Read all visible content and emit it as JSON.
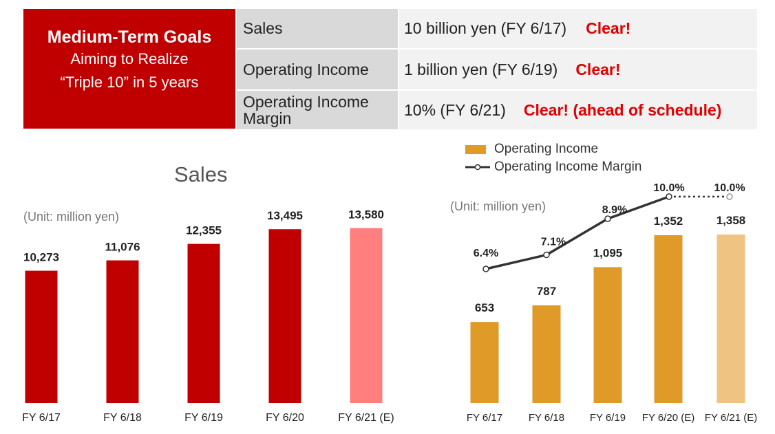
{
  "goals": {
    "title": "Medium-Term Goals",
    "subtitle_line1": "Aiming to Realize",
    "subtitle_line2": "“Triple 10” in 5 years",
    "rows": [
      {
        "label": "Sales",
        "value": "10 billion yen (FY 6/17)",
        "status": "Clear!"
      },
      {
        "label": "Operating Income",
        "value": "1 billion yen (FY 6/19)",
        "status": "Clear!"
      },
      {
        "label_line1": "Operating Income",
        "label_line2": "Margin",
        "value": "10% (FY 6/21)",
        "status": "Clear! (ahead of schedule)"
      }
    ]
  },
  "colors": {
    "brand_red": "#c00000",
    "sales_bar": "#c00000",
    "sales_estimate_bar": "#ff7f7f",
    "income_bar": "#e09a28",
    "income_estimate_bar": "#efc382",
    "margin_line": "#333333"
  },
  "chart_data": [
    {
      "type": "bar",
      "title": "Sales",
      "unit_note": "(Unit: million yen)",
      "categories": [
        "FY 6/17",
        "FY 6/18",
        "FY 6/19",
        "FY 6/20",
        "FY 6/21 (E)"
      ],
      "values": [
        10273,
        11076,
        12355,
        13495,
        13580
      ],
      "value_labels": [
        "10,273",
        "11,076",
        "12,355",
        "13,495",
        "13,580"
      ],
      "estimate_index": 4
    },
    {
      "type": "bar",
      "unit_note": "(Unit: million yen)",
      "categories": [
        "FY 6/17",
        "FY 6/18",
        "FY 6/19",
        "FY 6/20 (E)",
        "FY 6/21 (E)"
      ],
      "estimate_index": 4,
      "series": [
        {
          "name": "Operating Income",
          "type": "bar",
          "values": [
            653,
            787,
            1095,
            1352,
            1358
          ],
          "value_labels": [
            "653",
            "787",
            "1,095",
            "1,352",
            "1,358"
          ]
        },
        {
          "name": "Operating Income Margin",
          "type": "line",
          "values": [
            6.4,
            7.1,
            8.9,
            10.0,
            10.0
          ],
          "value_labels": [
            "6.4%",
            "7.1%",
            "8.9%",
            "10.0%",
            "10.0%"
          ],
          "dotted_from_index": 3
        }
      ],
      "legend_position": "top"
    }
  ]
}
